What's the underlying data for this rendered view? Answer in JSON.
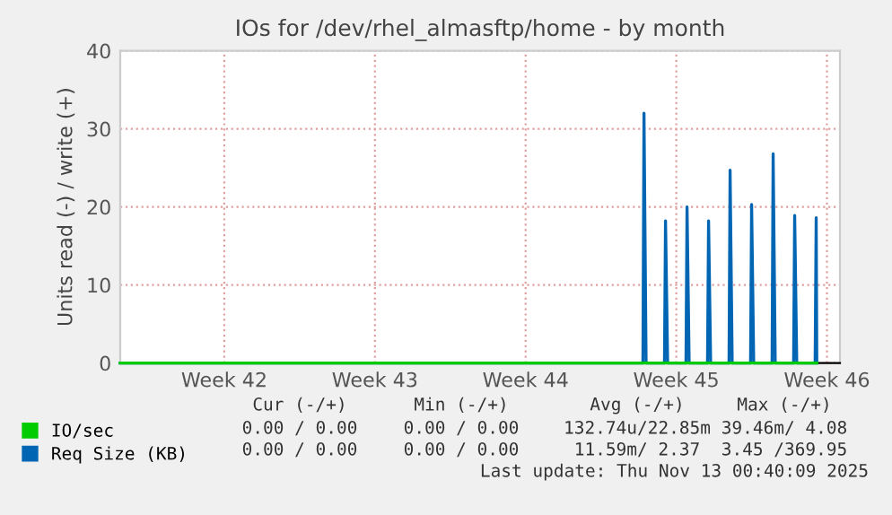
{
  "chart_data": {
    "type": "line",
    "title": "IOs for /dev/rhel_almasftp/home - by month",
    "ylabel": "Units read (-) / write (+)",
    "xlim": [
      "2025-10-11T16:00",
      "2025-11-14T02:30"
    ],
    "xticks": [
      {
        "value": "2025-10-16T12:00",
        "label": "Week 42"
      },
      {
        "value": "2025-10-23T12:00",
        "label": "Week 43"
      },
      {
        "value": "2025-10-30T12:00",
        "label": "Week 44"
      },
      {
        "value": "2025-11-06T12:00",
        "label": "Week 45"
      },
      {
        "value": "2025-11-13T12:00",
        "label": "Week 46"
      }
    ],
    "ylim": [
      0,
      40
    ],
    "yticks": [
      0,
      10,
      20,
      30,
      40
    ],
    "grid": true,
    "legend": "bottom left",
    "series": [
      {
        "name": "IO/sec",
        "color": "#00cc00",
        "x": [
          "2025-10-11T16:00",
          "2025-11-13T00:40"
        ],
        "values": [
          0,
          0
        ]
      },
      {
        "name": "Req Size (KB)",
        "color": "#0066b3",
        "x": [
          "2025-10-11T16:00",
          "2025-11-04T22:50",
          "2025-11-05T00:00",
          "2025-11-05T02:20",
          "2025-11-05T22:50",
          "2025-11-06T00:00",
          "2025-11-06T02:20",
          "2025-11-06T22:50",
          "2025-11-07T00:00",
          "2025-11-07T02:20",
          "2025-11-07T22:50",
          "2025-11-08T00:00",
          "2025-11-08T02:20",
          "2025-11-08T22:50",
          "2025-11-09T00:00",
          "2025-11-09T02:20",
          "2025-11-09T22:50",
          "2025-11-10T00:00",
          "2025-11-10T02:20",
          "2025-11-10T22:50",
          "2025-11-11T00:00",
          "2025-11-11T02:20",
          "2025-11-11T22:50",
          "2025-11-12T00:00",
          "2025-11-12T02:20",
          "2025-11-12T22:50",
          "2025-11-13T00:00",
          "2025-11-13T00:40"
        ],
        "values": [
          0,
          0,
          32.0,
          0,
          0,
          18.2,
          0,
          0,
          20.0,
          0,
          0,
          18.2,
          0,
          0,
          24.7,
          0,
          0,
          20.3,
          0,
          0,
          26.8,
          0,
          0,
          18.9,
          0,
          0,
          18.6,
          0
        ]
      }
    ],
    "annotations": [
      "Cur (-/+)",
      "Min (-/+)",
      "Avg (-/+)",
      "Max (-/+)",
      "0.00 / 0.00",
      "0.00 / 0.00",
      "132.74u/22.85m",
      "39.46m/ 4.08",
      "0.00 / 0.00",
      "0.00 / 0.00",
      "11.59m/ 2.37",
      "3.45 /369.95",
      "Last update: Thu Nov 13 00:40:09 2025"
    ]
  }
}
